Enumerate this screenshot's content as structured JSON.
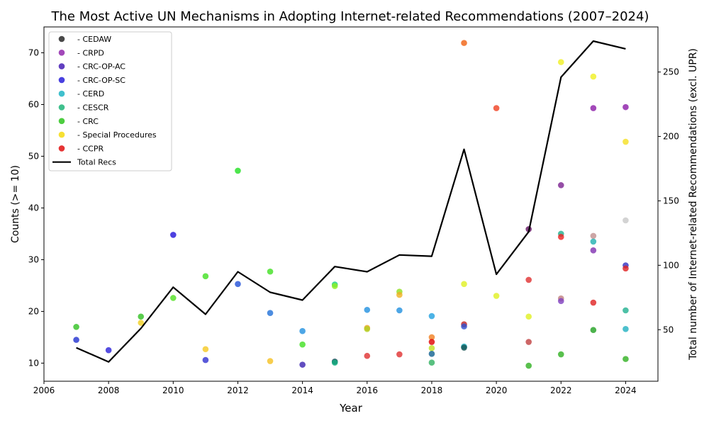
{
  "chart_data": {
    "type": "scatter",
    "title": "The Most Active UN Mechanisms in Adopting Internet-related Recommendations  (2007–2024)",
    "xlabel": "Year",
    "ylabel": "Counts (>= 10)",
    "y2label": "Total number of Internet-related Recommendations (excl. UPR)",
    "xlim": [
      2006,
      2025
    ],
    "ylim": [
      6.5,
      75
    ],
    "y2lim": [
      10,
      285
    ],
    "xticks": [
      2006,
      2008,
      2010,
      2012,
      2014,
      2016,
      2018,
      2020,
      2022,
      2024
    ],
    "yticks": [
      10,
      20,
      30,
      40,
      50,
      60,
      70
    ],
    "y2ticks": [
      50,
      100,
      150,
      200,
      250
    ],
    "grid": false,
    "legend_position": "upper-left",
    "legend": [
      {
        "label": "- CEDAW",
        "color": "#1a1a1a",
        "kind": "marker"
      },
      {
        "label": "- CRPD",
        "color": "#8b1aa8",
        "kind": "marker"
      },
      {
        "label": "- CRC-OP-AC",
        "color": "#3a0fb0",
        "kind": "marker"
      },
      {
        "label": "- CRC-OP-SC",
        "color": "#1a10d8",
        "kind": "marker"
      },
      {
        "label": "- CERD",
        "color": "#10b0c0",
        "kind": "marker"
      },
      {
        "label": "- CESCR",
        "color": "#10b070",
        "kind": "marker"
      },
      {
        "label": "- CRC",
        "color": "#20c010",
        "kind": "marker"
      },
      {
        "label": "- Special Procedures",
        "color": "#f5d800",
        "kind": "marker"
      },
      {
        "label": "- CCPR",
        "color": "#e00000",
        "kind": "marker"
      },
      {
        "label": "Total Recs",
        "color": "#000000",
        "kind": "line"
      }
    ],
    "total_recs": {
      "name": "Total Recs",
      "x": [
        2007,
        2008,
        2009,
        2010,
        2011,
        2012,
        2013,
        2014,
        2015,
        2016,
        2017,
        2018,
        2019,
        2020,
        2021,
        2022,
        2023,
        2024
      ],
      "y": [
        36,
        25,
        51,
        83,
        62,
        95,
        79,
        73,
        99,
        95,
        108,
        107,
        190,
        93,
        126,
        246,
        274,
        268
      ]
    },
    "points": [
      {
        "x": 2007,
        "y": 17.0,
        "color": "#30c020"
      },
      {
        "x": 2007,
        "y": 14.5,
        "color": "#2030d0"
      },
      {
        "x": 2008,
        "y": 12.5,
        "color": "#2a20d8"
      },
      {
        "x": 2009,
        "y": 19.0,
        "color": "#30c020"
      },
      {
        "x": 2009,
        "y": 17.8,
        "color": "#f0d020"
      },
      {
        "x": 2010,
        "y": 34.8,
        "color": "#2010d8"
      },
      {
        "x": 2010,
        "y": 22.6,
        "color": "#50e020"
      },
      {
        "x": 2011,
        "y": 26.8,
        "color": "#40e020"
      },
      {
        "x": 2011,
        "y": 12.7,
        "color": "#f5c820"
      },
      {
        "x": 2011,
        "y": 10.6,
        "color": "#3030d0"
      },
      {
        "x": 2012,
        "y": 47.2,
        "color": "#20e020"
      },
      {
        "x": 2012,
        "y": 25.3,
        "color": "#2050d8"
      },
      {
        "x": 2013,
        "y": 27.7,
        "color": "#40e020"
      },
      {
        "x": 2013,
        "y": 19.7,
        "color": "#2070d8"
      },
      {
        "x": 2013,
        "y": 10.4,
        "color": "#f5c020"
      },
      {
        "x": 2014,
        "y": 16.2,
        "color": "#2090e0"
      },
      {
        "x": 2014,
        "y": 13.6,
        "color": "#40e020"
      },
      {
        "x": 2014,
        "y": 9.7,
        "color": "#3a20b0"
      },
      {
        "x": 2015,
        "y": 25.2,
        "color": "#10d080"
      },
      {
        "x": 2015,
        "y": 24.9,
        "color": "#90f020"
      },
      {
        "x": 2015,
        "y": 10.3,
        "color": "#104050"
      },
      {
        "x": 2015,
        "y": 10.1,
        "color": "#10b080"
      },
      {
        "x": 2016,
        "y": 20.3,
        "color": "#2090e0"
      },
      {
        "x": 2016,
        "y": 16.8,
        "color": "#f0a020"
      },
      {
        "x": 2016,
        "y": 16.6,
        "color": "#b0d020"
      },
      {
        "x": 2016,
        "y": 11.4,
        "color": "#e03030"
      },
      {
        "x": 2017,
        "y": 23.8,
        "color": "#90e020"
      },
      {
        "x": 2017,
        "y": 23.2,
        "color": "#f0b020"
      },
      {
        "x": 2017,
        "y": 20.2,
        "color": "#2090e0"
      },
      {
        "x": 2017,
        "y": 11.7,
        "color": "#e03030"
      },
      {
        "x": 2018,
        "y": 19.1,
        "color": "#20a0e0"
      },
      {
        "x": 2018,
        "y": 15.0,
        "color": "#f08020"
      },
      {
        "x": 2018,
        "y": 14.1,
        "color": "#e00000"
      },
      {
        "x": 2018,
        "y": 12.9,
        "color": "#c0e020"
      },
      {
        "x": 2018,
        "y": 11.8,
        "color": "#106090"
      },
      {
        "x": 2018,
        "y": 10.1,
        "color": "#30b060"
      },
      {
        "x": 2019,
        "y": 71.9,
        "color": "#f06010"
      },
      {
        "x": 2019,
        "y": 25.3,
        "color": "#e0f020"
      },
      {
        "x": 2019,
        "y": 17.5,
        "color": "#c02020"
      },
      {
        "x": 2019,
        "y": 17.1,
        "color": "#3050d0"
      },
      {
        "x": 2019,
        "y": 13.2,
        "color": "#20b0c0"
      },
      {
        "x": 2019,
        "y": 13.0,
        "color": "#105050"
      },
      {
        "x": 2020,
        "y": 59.3,
        "color": "#f04020"
      },
      {
        "x": 2020,
        "y": 23.0,
        "color": "#e0f020"
      },
      {
        "x": 2021,
        "y": 35.9,
        "color": "#601060"
      },
      {
        "x": 2021,
        "y": 26.1,
        "color": "#e03030"
      },
      {
        "x": 2021,
        "y": 19.0,
        "color": "#e0f020"
      },
      {
        "x": 2021,
        "y": 14.1,
        "color": "#c04040"
      },
      {
        "x": 2021,
        "y": 9.5,
        "color": "#30b020"
      },
      {
        "x": 2022,
        "y": 68.2,
        "color": "#f0f020"
      },
      {
        "x": 2022,
        "y": 44.4,
        "color": "#7a2090"
      },
      {
        "x": 2022,
        "y": 35.0,
        "color": "#20b090"
      },
      {
        "x": 2022,
        "y": 34.4,
        "color": "#f02020"
      },
      {
        "x": 2022,
        "y": 22.5,
        "color": "#c08080"
      },
      {
        "x": 2022,
        "y": 22.0,
        "color": "#8040c0"
      },
      {
        "x": 2022,
        "y": 11.7,
        "color": "#30b020"
      },
      {
        "x": 2023,
        "y": 65.4,
        "color": "#f0f020"
      },
      {
        "x": 2023,
        "y": 59.3,
        "color": "#8b1aa8"
      },
      {
        "x": 2023,
        "y": 34.6,
        "color": "#c09090"
      },
      {
        "x": 2023,
        "y": 33.5,
        "color": "#20b0b0"
      },
      {
        "x": 2023,
        "y": 31.8,
        "color": "#8030b0"
      },
      {
        "x": 2023,
        "y": 21.7,
        "color": "#e02020"
      },
      {
        "x": 2023,
        "y": 16.4,
        "color": "#20a020"
      },
      {
        "x": 2024,
        "y": 59.5,
        "color": "#8b1aa8"
      },
      {
        "x": 2024,
        "y": 52.8,
        "color": "#f5e020"
      },
      {
        "x": 2024,
        "y": 37.6,
        "color": "#c8c8c8"
      },
      {
        "x": 2024,
        "y": 28.9,
        "color": "#3030c0"
      },
      {
        "x": 2024,
        "y": 28.3,
        "color": "#e02020"
      },
      {
        "x": 2024,
        "y": 20.2,
        "color": "#20b090"
      },
      {
        "x": 2024,
        "y": 16.6,
        "color": "#20b0c0"
      },
      {
        "x": 2024,
        "y": 10.8,
        "color": "#30b020"
      }
    ]
  }
}
